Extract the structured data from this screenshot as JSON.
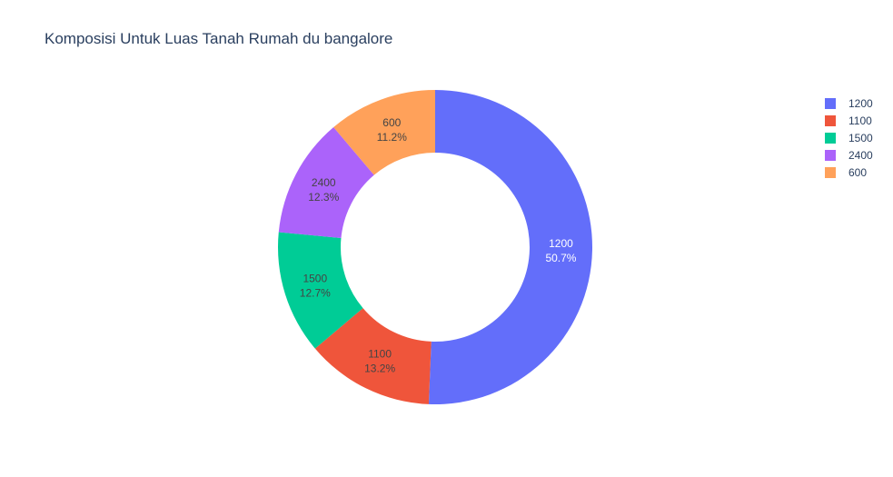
{
  "chart_data": {
    "type": "pie",
    "title": "Komposisi Untuk Luas Tanah Rumah du bangalore",
    "hole": true,
    "labels": [
      "1200",
      "1100",
      "1500",
      "2400",
      "600"
    ],
    "percent_labels": [
      "50.7%",
      "13.2%",
      "12.7%",
      "12.3%",
      "11.2%"
    ],
    "values": [
      50.7,
      13.2,
      12.7,
      12.3,
      11.2
    ],
    "colors": [
      "#636efa",
      "#EF553B",
      "#00cc96",
      "#ab63fa",
      "#FFA15A"
    ],
    "slice_label_colors": [
      "#ffffff",
      "#444444",
      "#444444",
      "#444444",
      "#444444"
    ],
    "direction": "clockwise",
    "legend": {
      "position": "top-right",
      "items": [
        "1200",
        "1100",
        "1500",
        "2400",
        "600"
      ]
    }
  }
}
